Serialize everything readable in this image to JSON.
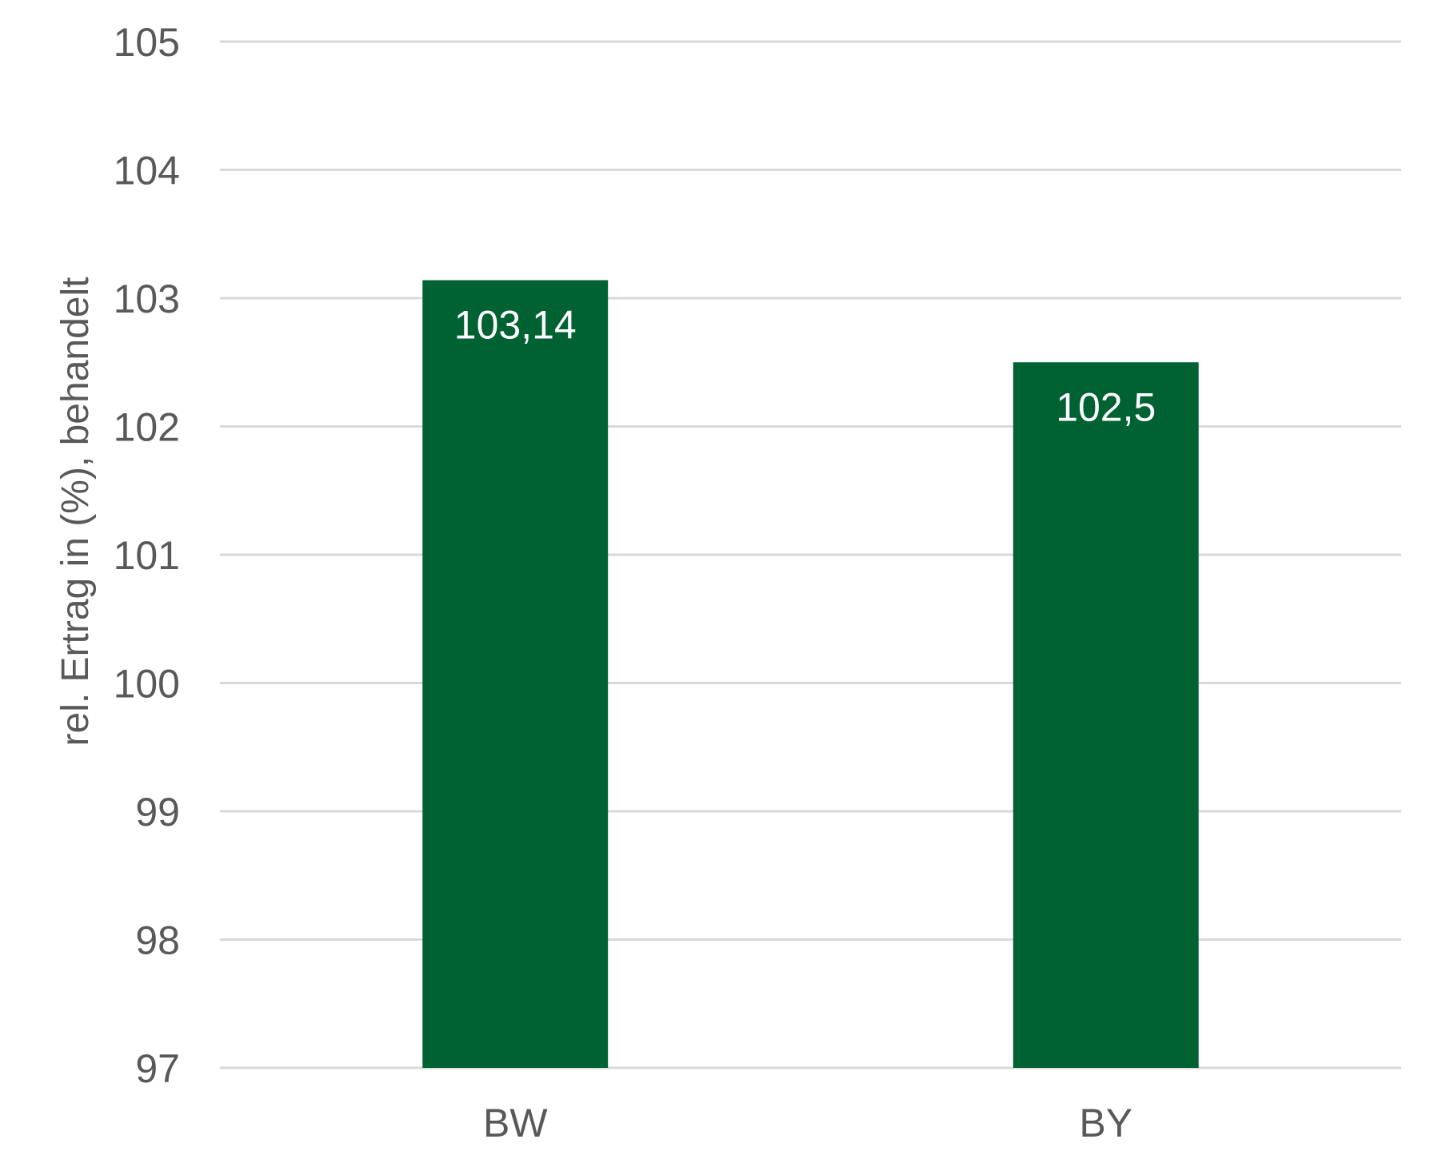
{
  "chart_data": {
    "type": "bar",
    "categories": [
      "BW",
      "BY"
    ],
    "values": [
      103.14,
      102.5
    ],
    "data_labels": [
      "103,14",
      "102,5"
    ],
    "title": "",
    "xlabel": "",
    "ylabel": "rel. Ertrag in (%), behandelt",
    "ylim": [
      97,
      105
    ],
    "yticks": [
      97,
      98,
      99,
      100,
      101,
      102,
      103,
      104,
      105
    ],
    "grid": true,
    "legend": "none",
    "bar_color": "#006132",
    "data_label_color": "#ffffff"
  }
}
